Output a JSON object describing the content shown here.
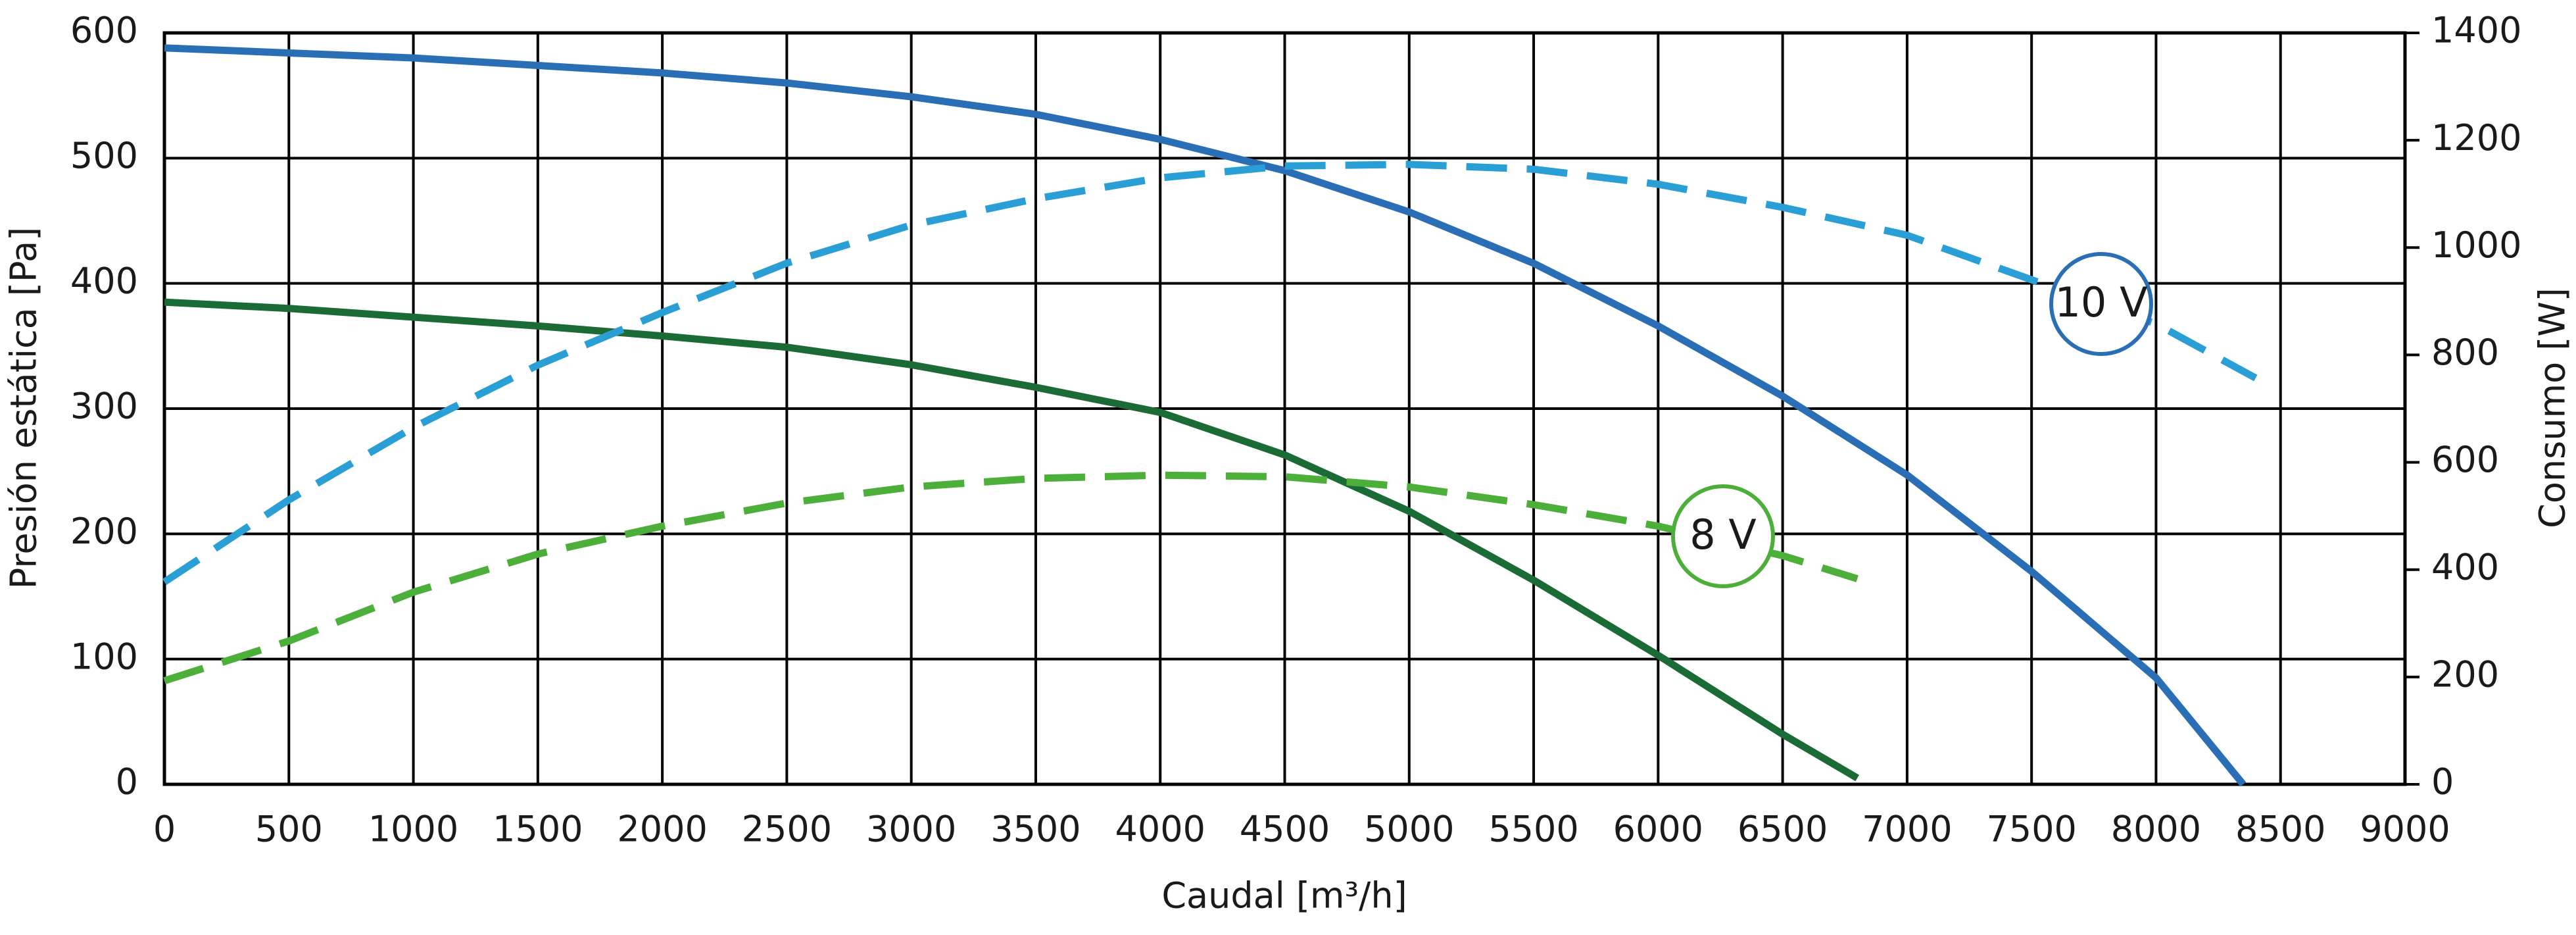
{
  "chart_data": {
    "type": "line",
    "x_label": "Caudal [m³/h]",
    "y_label": "Presión estática [Pa]",
    "y2_label": "Consumo [W]",
    "xlim": [
      0,
      9000
    ],
    "xticks": [
      0,
      500,
      1000,
      1500,
      2000,
      2500,
      3000,
      3500,
      4000,
      4500,
      5000,
      5500,
      6000,
      6500,
      7000,
      7500,
      8000,
      8500,
      9000
    ],
    "ylim": [
      0,
      600
    ],
    "yticks": [
      0,
      100,
      200,
      300,
      400,
      500,
      600
    ],
    "y2lim": [
      0,
      1400
    ],
    "y2ticks": [
      0,
      200,
      400,
      600,
      800,
      1000,
      1200,
      1400
    ],
    "grid": true,
    "series": [
      {
        "color": "#2a6fb5",
        "dashed": false,
        "x": [
          0,
          500,
          1000,
          1500,
          2000,
          2500,
          3000,
          3500,
          4000,
          4500,
          5000,
          5500,
          6000,
          6500,
          7000,
          7500,
          8000,
          8350
        ],
        "values": [
          588,
          584,
          580,
          574,
          568,
          560,
          549,
          535,
          515,
          490,
          457,
          416,
          366,
          310,
          247,
          170,
          85,
          0
        ]
      },
      {
        "color": "#1a6b35",
        "dashed": false,
        "x": [
          0,
          500,
          1000,
          1500,
          2000,
          2500,
          3000,
          3500,
          4000,
          4500,
          5000,
          5500,
          6000,
          6500,
          6800
        ],
        "values": [
          385,
          380,
          373,
          366,
          358,
          349,
          335,
          317,
          297,
          263,
          218,
          163,
          103,
          40,
          5
        ]
      },
      {
        "color": "#2a9fd6",
        "dashed": true,
        "axis": "y2",
        "x": [
          0,
          500,
          1000,
          1500,
          2000,
          2500,
          3000,
          3500,
          4000,
          4500,
          5000,
          5500,
          6000,
          6500,
          7000,
          7500,
          8000,
          8400
        ],
        "values": [
          377,
          530,
          665,
          781,
          879,
          971,
          1042,
          1091,
          1130,
          1152,
          1155,
          1146,
          1118,
          1075,
          1023,
          940,
          858,
          757
        ]
      },
      {
        "color": "#4caf3a",
        "dashed": true,
        "axis": "y2",
        "x": [
          0,
          500,
          1000,
          1500,
          2000,
          2500,
          3000,
          3500,
          4000,
          4500,
          5000,
          5500,
          6000,
          6500,
          6800
        ],
        "values": [
          193,
          267,
          358,
          429,
          481,
          524,
          554,
          570,
          576,
          573,
          554,
          521,
          481,
          426,
          383
        ]
      }
    ],
    "annotations": [
      {
        "text": "10 V",
        "color": "#2a6fb5"
      },
      {
        "text": "8 V",
        "color": "#4caf3a"
      }
    ]
  }
}
